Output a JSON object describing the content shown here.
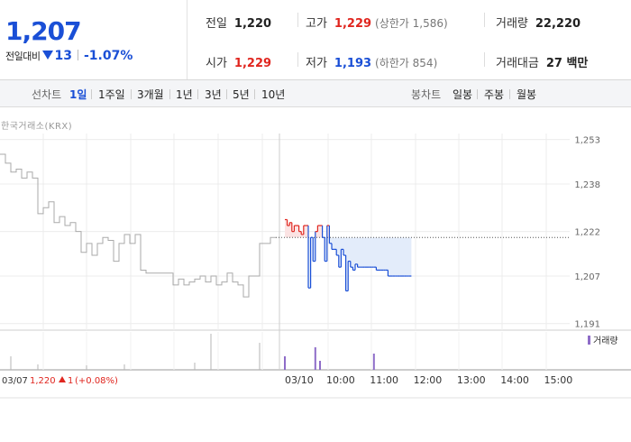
{
  "quote": {
    "price": "1,207",
    "change_label": "전일대비",
    "change_value": "13",
    "change_rate": "-1.07%",
    "prev_close": {
      "label": "전일",
      "value": "1,220"
    },
    "high": {
      "label": "고가",
      "value": "1,229",
      "sub": "(상한가 1,586)"
    },
    "volume": {
      "label": "거래량",
      "value": "22,220"
    },
    "open": {
      "label": "시가",
      "value": "1,229"
    },
    "low": {
      "label": "저가",
      "value": "1,193",
      "sub": "(하한가 854)"
    },
    "amount": {
      "label": "거래대금",
      "value": "27 백만"
    }
  },
  "period_bar": {
    "line_label": "선차트",
    "line_periods": [
      "1일",
      "1주일",
      "3개월",
      "1년",
      "3년",
      "5년",
      "10년"
    ],
    "active_period": "1일",
    "candle_label": "봉차트",
    "candle_periods": [
      "일봉",
      "주봉",
      "월봉"
    ]
  },
  "source_label": "한국거래소(KRX)",
  "volume_legend": "거래량",
  "footer": {
    "date": "03/07",
    "price": "1,220",
    "change": "1",
    "rate": "(+0.08%)"
  },
  "colors": {
    "up": "#e0261f",
    "down": "#1a4fd6",
    "prev": "#aaaaaa",
    "volume_prev": "#b5b5b5",
    "volume_today": "#8e6cc8"
  },
  "chart_data": {
    "type": "line",
    "y_ticks": [
      1253,
      1238,
      1222,
      1207,
      1191
    ],
    "ylim": [
      1190,
      1255
    ],
    "x_ticks": [
      "03/10",
      "10:00",
      "11:00",
      "12:00",
      "13:00",
      "14:00",
      "15:00"
    ],
    "reference_price": 1220,
    "previous_day": {
      "date": "03/07",
      "values": [
        1248,
        1245,
        1242,
        1243,
        1240,
        1242,
        1240,
        1228,
        1230,
        1232,
        1225,
        1227,
        1224,
        1225,
        1222,
        1215,
        1218,
        1214,
        1218,
        1220,
        1219,
        1212,
        1218,
        1221,
        1218,
        1221,
        1209,
        1208,
        1208,
        1208,
        1208,
        1208,
        1204,
        1206,
        1204,
        1205,
        1206,
        1207,
        1205,
        1207,
        1204,
        1205,
        1208,
        1205,
        1204,
        1200,
        1207,
        1207,
        1218,
        1218,
        1220,
        1220
      ]
    },
    "today": {
      "date": "03/10",
      "values": [
        1226,
        1224,
        1225,
        1222,
        1224,
        1224,
        1222,
        1221,
        1224,
        1224,
        1203,
        1220,
        1212,
        1222,
        1224,
        1224,
        1220,
        1212,
        1224,
        1218,
        1216,
        1216,
        1214,
        1210,
        1216,
        1214,
        1202,
        1212,
        1210,
        1209,
        1211,
        1210,
        1210,
        1210,
        1210,
        1210,
        1210,
        1210,
        1210,
        1209,
        1209,
        1209,
        1209,
        1209,
        1207,
        1207,
        1207,
        1207,
        1207,
        1207,
        1207,
        1207,
        1207,
        1207,
        1207
      ]
    },
    "volume_previous": [
      0,
      0,
      15,
      0,
      0,
      0,
      0,
      6,
      0,
      0,
      0,
      0,
      0,
      0,
      0,
      0,
      5,
      0,
      0,
      0,
      0,
      0,
      0,
      6,
      0,
      0,
      0,
      0,
      0,
      0,
      0,
      0,
      0,
      0,
      0,
      0,
      8,
      0,
      0,
      40,
      0,
      0,
      0,
      0,
      0,
      0,
      0,
      0,
      30,
      0,
      0,
      0
    ],
    "volume_today": [
      15,
      0,
      0,
      0,
      0,
      0,
      0,
      0,
      0,
      0,
      0,
      0,
      0,
      25,
      0,
      10,
      0,
      0,
      0,
      0,
      0,
      0,
      0,
      0,
      0,
      0,
      0,
      0,
      0,
      0,
      0,
      0,
      0,
      0,
      0,
      0,
      0,
      0,
      18,
      0,
      0,
      0,
      0,
      0,
      0,
      0,
      0,
      0,
      0,
      0,
      0,
      0,
      0,
      0,
      0
    ]
  }
}
